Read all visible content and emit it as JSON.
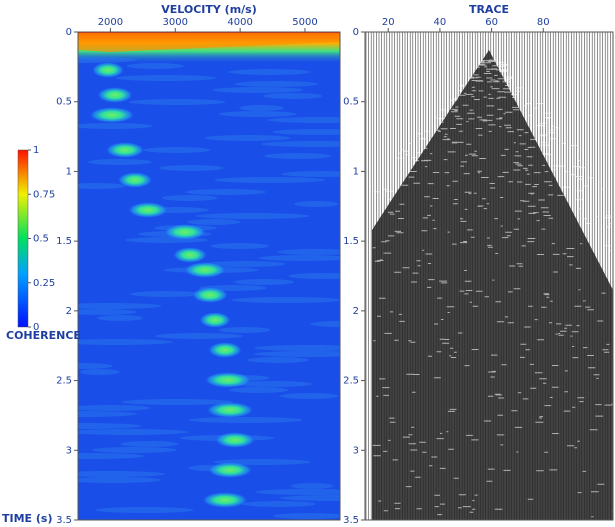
{
  "chart_data": [
    {
      "type": "heatmap",
      "title": "VELOCITY (m/s)",
      "y_label": "TIME (s)",
      "xlim": [
        1500,
        5540
      ],
      "xticks": [
        2000,
        3000,
        4000,
        5000
      ],
      "ylim": [
        0,
        3.5
      ],
      "yticks": [
        0,
        0.5,
        1,
        1.5,
        2,
        2.5,
        3,
        3.5
      ],
      "y_inverted": true,
      "colorbar": {
        "label": "COHERENCE",
        "lim": [
          0,
          1
        ],
        "ticks": [
          0,
          0.25,
          0.5,
          0.75,
          1
        ]
      }
    },
    {
      "type": "wiggle",
      "title": "TRACE",
      "xlim": [
        11,
        107
      ],
      "xticks": [
        20,
        40,
        60,
        80
      ],
      "ylim": [
        0,
        3.5
      ],
      "yticks": [
        0,
        0.5,
        1,
        1.5,
        2,
        2.5,
        3,
        3.5
      ],
      "y_inverted": true
    }
  ]
}
